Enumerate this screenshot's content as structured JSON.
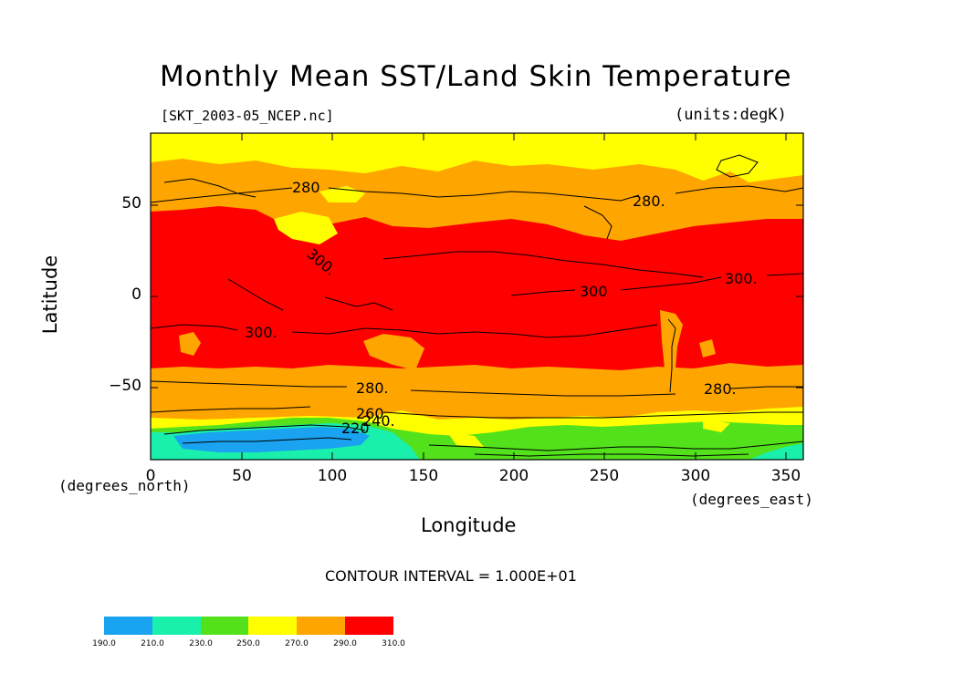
{
  "title": "Monthly Mean SST/Land Skin Temperature",
  "file_label": "[SKT_2003-05_NCEP.nc]",
  "units_label": "(units:degK)",
  "x_axis": {
    "label": "Longitude",
    "units": "(degrees_east)",
    "ticks": [
      "0",
      "50",
      "100",
      "150",
      "200",
      "250",
      "300",
      "350"
    ]
  },
  "y_axis": {
    "label": "Latitude",
    "units": "(degrees_north)",
    "ticks": [
      "50",
      "0",
      "−50"
    ]
  },
  "contour_interval": "CONTOUR INTERVAL = 1.000E+01",
  "contour_labels": [
    "280",
    "280.",
    "300",
    "300.",
    "300.",
    "300.",
    "280.",
    "280.",
    "260",
    "240.",
    "220"
  ],
  "colorbar": {
    "labels": [
      "190.0",
      "210.0",
      "230.0",
      "250.0",
      "270.0",
      "290.0",
      "310.0"
    ],
    "colors": [
      "#1aa3f0",
      "#19f0ac",
      "#52e11b",
      "#ffff00",
      "#ffa500",
      "#ff0000"
    ]
  },
  "chart_data": {
    "type": "heatmap",
    "title": "Monthly Mean SST/Land Skin Temperature",
    "xlabel": "Longitude",
    "ylabel": "Latitude",
    "xlim": [
      0,
      360
    ],
    "ylim": [
      -90,
      90
    ],
    "levels": [
      190,
      210,
      230,
      250,
      270,
      290,
      310
    ],
    "contour_interval": 10
  }
}
